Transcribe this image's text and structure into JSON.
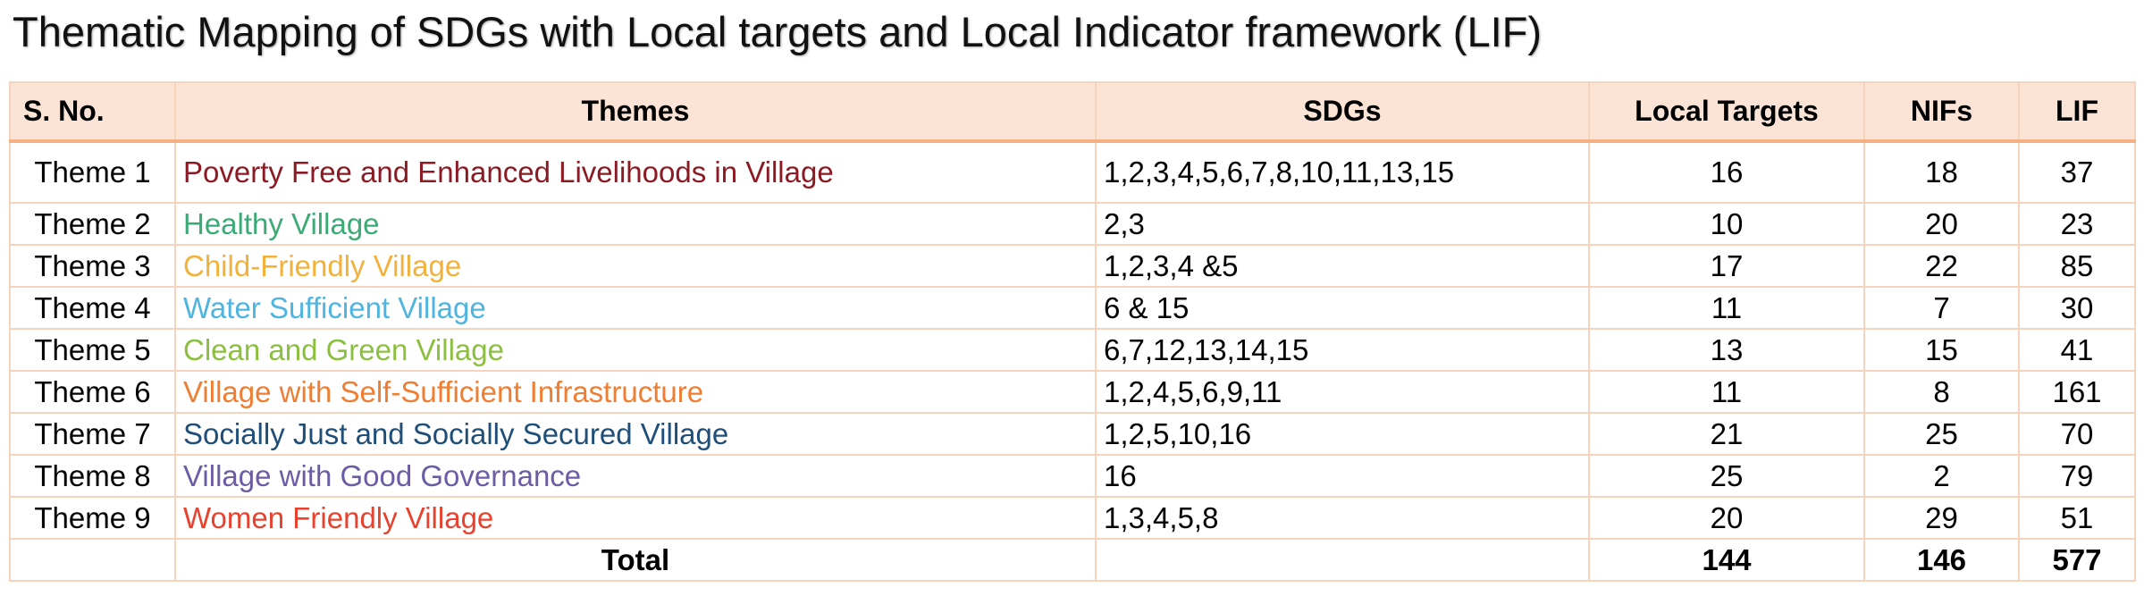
{
  "title": "Thematic Mapping of SDGs with Local targets and Local Indicator framework (LIF)",
  "table": {
    "headers": {
      "sno": "S. No.",
      "themes": "Themes",
      "sdgs": "SDGs",
      "local_targets": "Local Targets",
      "nifs": "NIFs",
      "lif": "LIF"
    },
    "rows": [
      {
        "sno": "Theme 1",
        "theme": "Poverty Free and Enhanced Livelihoods in Village",
        "color": "#8b1a24",
        "sdgs": "1,2,3,4,5,6,7,8,10,11,13,15",
        "local_targets": "16",
        "nifs": "18",
        "lif": "37"
      },
      {
        "sno": "Theme 2",
        "theme": "Healthy Village",
        "color": "#3aab74",
        "sdgs": "2,3",
        "local_targets": "10",
        "nifs": "20",
        "lif": "23"
      },
      {
        "sno": "Theme 3",
        "theme": "Child-Friendly Village",
        "color": "#f2b13a",
        "sdgs": "1,2,3,4 &5",
        "local_targets": "17",
        "nifs": "22",
        "lif": "85"
      },
      {
        "sno": "Theme 4",
        "theme": "Water Sufficient Village",
        "color": "#4fb5e0",
        "sdgs": "6 & 15",
        "local_targets": "11",
        "nifs": "7",
        "lif": "30"
      },
      {
        "sno": "Theme 5",
        "theme": "Clean and Green Village",
        "color": "#8cbf3f",
        "sdgs": "6,7,12,13,14,15",
        "local_targets": "13",
        "nifs": "15",
        "lif": "41"
      },
      {
        "sno": "Theme 6",
        "theme": "Village with Self-Sufficient Infrastructure",
        "color": "#ef7d32",
        "sdgs": "1,2,4,5,6,9,11",
        "local_targets": "11",
        "nifs": "8",
        "lif": "161"
      },
      {
        "sno": "Theme 7",
        "theme": "Socially Just and Socially Secured Village",
        "color": "#1f4e79",
        "sdgs": "1,2,5,10,16",
        "local_targets": "21",
        "nifs": "25",
        "lif": "70"
      },
      {
        "sno": "Theme 8",
        "theme": "Village with Good Governance",
        "color": "#6b5ca5",
        "sdgs": "16",
        "local_targets": "25",
        "nifs": "2",
        "lif": "79"
      },
      {
        "sno": "Theme 9",
        "theme": "Women Friendly Village",
        "color": "#e8422f",
        "sdgs": "1,3,4,5,8",
        "local_targets": "20",
        "nifs": "29",
        "lif": "51"
      }
    ],
    "total": {
      "label": "Total",
      "local_targets": "144",
      "nifs": "146",
      "lif": "577"
    }
  }
}
